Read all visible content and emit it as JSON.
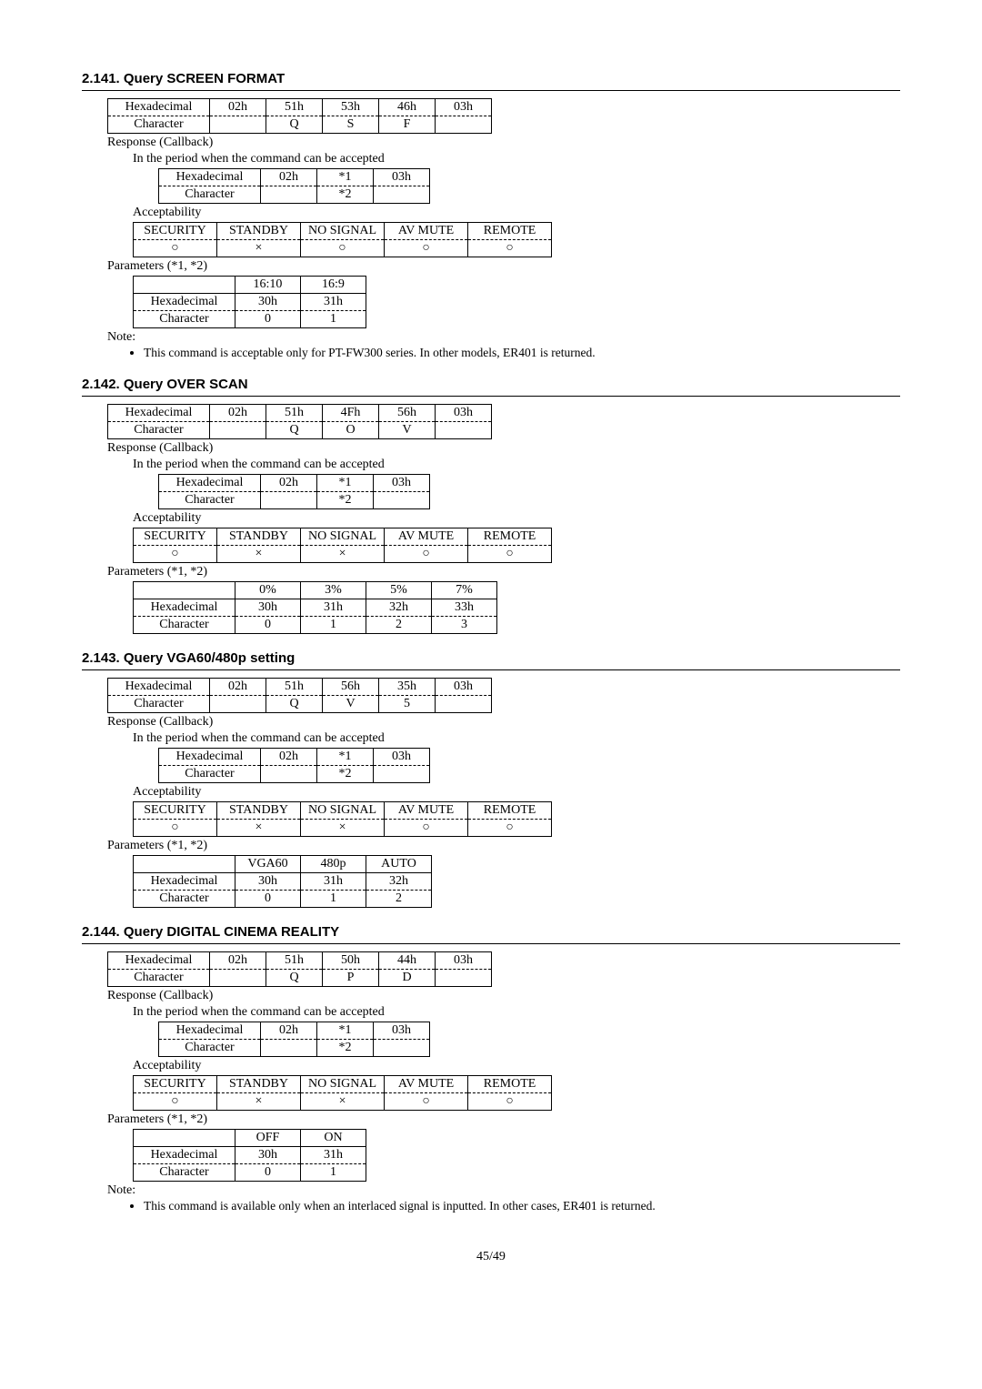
{
  "page": "45/49",
  "sections": [
    {
      "id": "s141",
      "title": "2.141. Query SCREEN FORMAT",
      "cmd": {
        "row_hex_label": "Hexadecimal",
        "row_char_label": "Character",
        "hex": [
          "02h",
          "51h",
          "53h",
          "46h",
          "03h"
        ],
        "char": [
          "",
          "Q",
          "S",
          "F",
          ""
        ]
      },
      "resp_label": "Response (Callback)",
      "period_label": "In the period when the command can be accepted",
      "resp": {
        "row_hex_label": "Hexadecimal",
        "row_char_label": "Character",
        "hex": [
          "02h",
          "*1",
          "03h"
        ],
        "char": [
          "",
          "*2",
          ""
        ]
      },
      "accept_label": "Acceptability",
      "accept": {
        "headers": [
          "SECURITY",
          "STANDBY",
          "NO SIGNAL",
          "AV MUTE",
          "REMOTE"
        ],
        "vals": [
          "○",
          "×",
          "○",
          "○",
          "○"
        ]
      },
      "params_label": "Parameters (*1, *2)",
      "params": {
        "headers": [
          "",
          "16:10",
          "16:9"
        ],
        "hex_label": "Hexadecimal",
        "hex": [
          "30h",
          "31h"
        ],
        "char_label": "Character",
        "char": [
          "0",
          "1"
        ]
      },
      "note_label": "Note:",
      "notes": [
        "This command is acceptable only for PT-FW300 series. In other models, ER401 is returned."
      ]
    },
    {
      "id": "s142",
      "title": "2.142. Query OVER SCAN",
      "cmd": {
        "row_hex_label": "Hexadecimal",
        "row_char_label": "Character",
        "hex": [
          "02h",
          "51h",
          "4Fh",
          "56h",
          "03h"
        ],
        "char": [
          "",
          "Q",
          "O",
          "V",
          ""
        ]
      },
      "resp_label": "Response (Callback)",
      "period_label": "In the period when the command can be accepted",
      "resp": {
        "row_hex_label": "Hexadecimal",
        "row_char_label": "Character",
        "hex": [
          "02h",
          "*1",
          "03h"
        ],
        "char": [
          "",
          "*2",
          ""
        ]
      },
      "accept_label": "Acceptability",
      "accept": {
        "headers": [
          "SECURITY",
          "STANDBY",
          "NO SIGNAL",
          "AV MUTE",
          "REMOTE"
        ],
        "vals": [
          "○",
          "×",
          "×",
          "○",
          "○"
        ]
      },
      "params_label": "Parameters (*1, *2)",
      "params": {
        "headers": [
          "",
          "0%",
          "3%",
          "5%",
          "7%"
        ],
        "hex_label": "Hexadecimal",
        "hex": [
          "30h",
          "31h",
          "32h",
          "33h"
        ],
        "char_label": "Character",
        "char": [
          "0",
          "1",
          "2",
          "3"
        ]
      }
    },
    {
      "id": "s143",
      "title": "2.143. Query VGA60/480p setting",
      "cmd": {
        "row_hex_label": "Hexadecimal",
        "row_char_label": "Character",
        "hex": [
          "02h",
          "51h",
          "56h",
          "35h",
          "03h"
        ],
        "char": [
          "",
          "Q",
          "V",
          "5",
          ""
        ]
      },
      "resp_label": "Response (Callback)",
      "period_label": "In the period when the command can be accepted",
      "resp": {
        "row_hex_label": "Hexadecimal",
        "row_char_label": "Character",
        "hex": [
          "02h",
          "*1",
          "03h"
        ],
        "char": [
          "",
          "*2",
          ""
        ]
      },
      "accept_label": "Acceptability",
      "accept": {
        "headers": [
          "SECURITY",
          "STANDBY",
          "NO SIGNAL",
          "AV MUTE",
          "REMOTE"
        ],
        "vals": [
          "○",
          "×",
          "×",
          "○",
          "○"
        ]
      },
      "params_label": "Parameters (*1, *2)",
      "params": {
        "headers": [
          "",
          "VGA60",
          "480p",
          "AUTO"
        ],
        "hex_label": "Hexadecimal",
        "hex": [
          "30h",
          "31h",
          "32h"
        ],
        "char_label": "Character",
        "char": [
          "0",
          "1",
          "2"
        ]
      }
    },
    {
      "id": "s144",
      "title": "2.144. Query DIGITAL CINEMA REALITY",
      "cmd": {
        "row_hex_label": "Hexadecimal",
        "row_char_label": "Character",
        "hex": [
          "02h",
          "51h",
          "50h",
          "44h",
          "03h"
        ],
        "char": [
          "",
          "Q",
          "P",
          "D",
          ""
        ]
      },
      "resp_label": "Response (Callback)",
      "period_label": "In the period when the command can be accepted",
      "resp": {
        "row_hex_label": "Hexadecimal",
        "row_char_label": "Character",
        "hex": [
          "02h",
          "*1",
          "03h"
        ],
        "char": [
          "",
          "*2",
          ""
        ]
      },
      "accept_label": "Acceptability",
      "accept": {
        "headers": [
          "SECURITY",
          "STANDBY",
          "NO SIGNAL",
          "AV MUTE",
          "REMOTE"
        ],
        "vals": [
          "○",
          "×",
          "×",
          "○",
          "○"
        ]
      },
      "params_label": "Parameters (*1, *2)",
      "params": {
        "headers": [
          "",
          "OFF",
          "ON"
        ],
        "hex_label": "Hexadecimal",
        "hex": [
          "30h",
          "31h"
        ],
        "char_label": "Character",
        "char": [
          "0",
          "1"
        ]
      },
      "note_label": "Note:",
      "notes": [
        "This command is available only when an interlaced signal is inputted. In other cases, ER401 is returned."
      ]
    }
  ]
}
